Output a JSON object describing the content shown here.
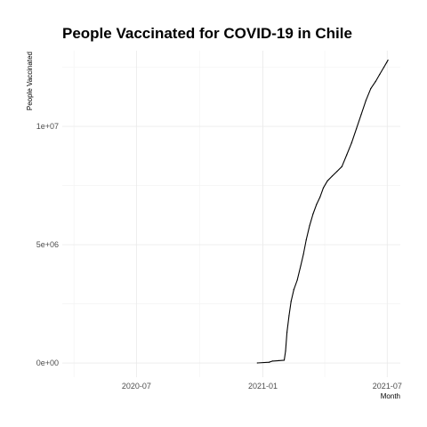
{
  "chart_data": {
    "type": "line",
    "title": "People Vaccinated for COVID-19 in Chile",
    "xlabel": "Month",
    "ylabel": "People Vaccinated",
    "xlim": [
      "2020-03-15",
      "2021-07-20"
    ],
    "ylim": [
      -600000,
      13200000
    ],
    "x_ticks": [
      {
        "date": "2020-07-01",
        "label": "2020-07"
      },
      {
        "date": "2021-01-01",
        "label": "2021-01"
      },
      {
        "date": "2021-07-01",
        "label": "2021-07"
      }
    ],
    "x_minor_ticks": [
      "2020-04-01",
      "2020-10-01",
      "2021-04-01"
    ],
    "y_ticks": [
      {
        "value": 0,
        "label": "0e+00"
      },
      {
        "value": 5000000,
        "label": "5e+06"
      },
      {
        "value": 10000000,
        "label": "1e+07"
      }
    ],
    "y_minor_ticks": [
      2500000,
      7500000,
      12500000
    ],
    "grid": true,
    "series": [
      {
        "color": "#000000",
        "x": [
          "2020-12-24",
          "2021-01-10",
          "2021-01-15",
          "2021-01-24",
          "2021-02-01",
          "2021-02-03",
          "2021-02-05",
          "2021-02-08",
          "2021-02-11",
          "2021-02-15",
          "2021-02-20",
          "2021-02-25",
          "2021-03-01",
          "2021-03-05",
          "2021-03-10",
          "2021-03-15",
          "2021-03-20",
          "2021-03-25",
          "2021-03-30",
          "2021-04-05",
          "2021-04-12",
          "2021-04-19",
          "2021-04-26",
          "2021-05-03",
          "2021-05-10",
          "2021-05-17",
          "2021-05-24",
          "2021-05-31",
          "2021-06-07",
          "2021-06-14",
          "2021-06-20",
          "2021-06-26",
          "2021-06-30",
          "2021-07-02"
        ],
        "y": [
          0,
          30000,
          80000,
          100000,
          120000,
          500000,
          1300000,
          2000000,
          2600000,
          3100000,
          3500000,
          4100000,
          4600000,
          5200000,
          5800000,
          6300000,
          6700000,
          7000000,
          7400000,
          7700000,
          7900000,
          8100000,
          8300000,
          8800000,
          9300000,
          9900000,
          10500000,
          11100000,
          11600000,
          11900000,
          12200000,
          12500000,
          12700000,
          12800000
        ]
      }
    ]
  }
}
